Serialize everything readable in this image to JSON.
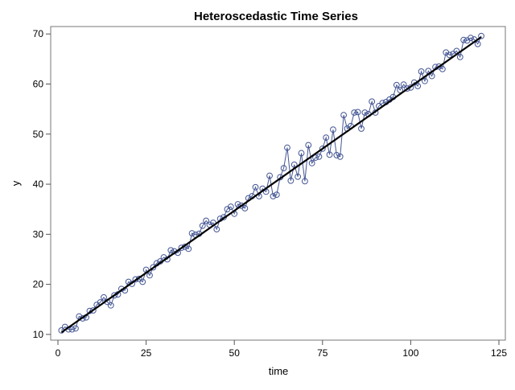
{
  "chart_data": {
    "type": "line",
    "title": "Heteroscedastic Time Series",
    "xlabel": "time",
    "ylabel": "y",
    "xlim": [
      0,
      125
    ],
    "ylim": [
      9.5,
      71
    ],
    "xticks": [
      0,
      25,
      50,
      75,
      100,
      125
    ],
    "yticks": [
      10,
      20,
      30,
      40,
      50,
      60,
      70
    ],
    "grid": false,
    "legend": "none",
    "colors": {
      "series": "#445694",
      "trend": "#000000"
    },
    "series": [
      {
        "style": "line-with-circle-markers",
        "x": [
          1,
          2,
          3,
          4,
          5,
          6,
          7,
          8,
          9,
          10,
          11,
          12,
          13,
          14,
          15,
          16,
          17,
          18,
          19,
          20,
          21,
          22,
          23,
          24,
          25,
          26,
          27,
          28,
          29,
          30,
          31,
          32,
          33,
          34,
          35,
          36,
          37,
          38,
          39,
          40,
          41,
          42,
          43,
          44,
          45,
          46,
          47,
          48,
          49,
          50,
          51,
          52,
          53,
          54,
          55,
          56,
          57,
          58,
          59,
          60,
          61,
          62,
          63,
          64,
          65,
          66,
          67,
          68,
          69,
          70,
          71,
          72,
          73,
          74,
          75,
          76,
          77,
          78,
          79,
          80,
          81,
          82,
          83,
          84,
          85,
          86,
          87,
          88,
          89,
          90,
          91,
          92,
          93,
          94,
          95,
          96,
          97,
          98,
          99,
          100,
          101,
          102,
          103,
          104,
          105,
          106,
          107,
          108,
          109,
          110,
          111,
          112,
          113,
          114,
          115,
          116,
          117,
          118,
          119,
          120
        ],
        "values": [
          10.8,
          11.5,
          11.0,
          11.0,
          11.2,
          13.6,
          13.2,
          13.4,
          14.7,
          14.8,
          15.9,
          16.4,
          17.4,
          16.5,
          15.8,
          17.8,
          18.0,
          19.1,
          18.8,
          20.5,
          20.1,
          21.0,
          21.1,
          20.5,
          22.9,
          21.8,
          23.4,
          24.2,
          24.6,
          25.4,
          25.0,
          26.8,
          26.6,
          26.3,
          27.3,
          27.5,
          27.1,
          30.2,
          29.9,
          30.1,
          31.7,
          32.7,
          31.9,
          32.3,
          31.0,
          33.1,
          33.4,
          35.0,
          35.5,
          34.1,
          36.0,
          35.7,
          35.2,
          37.2,
          37.6,
          39.4,
          37.6,
          39.1,
          38.5,
          41.7,
          37.6,
          37.9,
          41.4,
          43.2,
          47.3,
          40.7,
          43.9,
          41.5,
          46.2,
          40.6,
          47.8,
          44.2,
          45.3,
          45.5,
          47.1,
          49.3,
          45.9,
          50.9,
          45.8,
          45.5,
          53.8,
          51.1,
          51.6,
          54.3,
          54.4,
          51.1,
          54.3,
          54.0,
          56.5,
          54.3,
          55.6,
          56.2,
          56.4,
          56.9,
          57.4,
          59.8,
          58.8,
          59.9,
          59.1,
          59.3,
          60.3,
          59.6,
          62.5,
          60.6,
          62.6,
          61.6,
          63.4,
          63.5,
          63.0,
          66.3,
          65.8,
          66.0,
          66.6,
          65.4,
          68.8,
          68.7,
          69.2,
          68.9,
          68.0,
          69.6
        ]
      },
      {
        "style": "trend-line",
        "x": [
          1,
          120
        ],
        "values": [
          10.4,
          69.4
        ]
      }
    ]
  }
}
